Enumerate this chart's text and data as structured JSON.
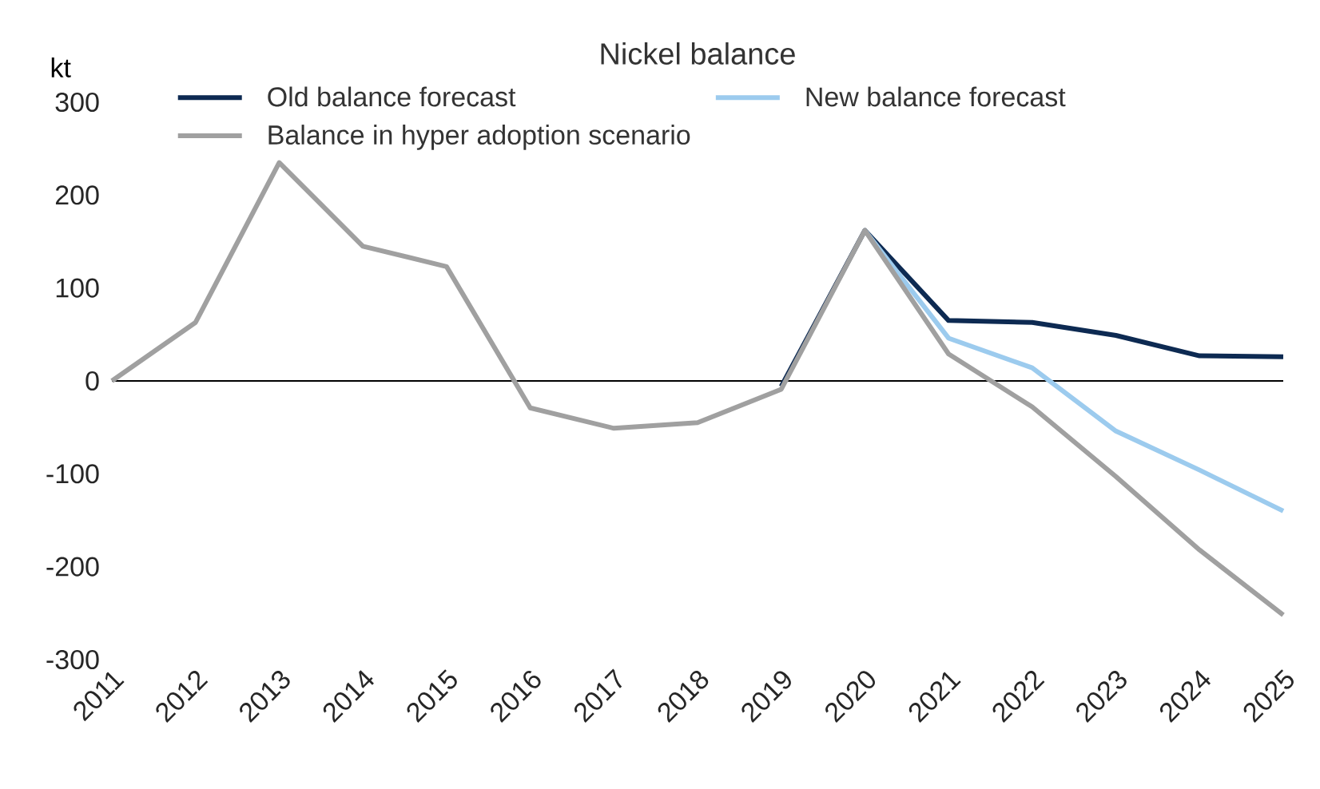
{
  "chart_data": {
    "type": "line",
    "title": "Nickel balance",
    "ylabel": "kt",
    "categories": [
      "2011",
      "2012",
      "2013",
      "2014",
      "2015",
      "2016",
      "2017",
      "2018",
      "2019",
      "2020",
      "2021",
      "2022",
      "2023",
      "2024",
      "2025"
    ],
    "series": [
      {
        "name": "Old balance forecast",
        "color": "#0d2a52",
        "values": [
          null,
          null,
          null,
          null,
          null,
          null,
          null,
          null,
          -6,
          162,
          65,
          63,
          49,
          27,
          26
        ]
      },
      {
        "name": "New balance forecast",
        "color": "#9ccbee",
        "values": [
          null,
          null,
          null,
          null,
          null,
          null,
          null,
          null,
          null,
          162,
          46,
          14,
          -54,
          -96,
          -140
        ]
      },
      {
        "name": "Balance in hyper adoption scenario",
        "color": "#a0a0a0",
        "values": [
          0,
          63,
          235,
          145,
          123,
          -29,
          -51,
          -45,
          -9,
          162,
          29,
          -28,
          -103,
          -182,
          -252
        ]
      }
    ],
    "ylim": [
      -300,
      300
    ],
    "yticks": [
      -300,
      -200,
      -100,
      0,
      100,
      200,
      300
    ],
    "ref_lines": [
      {
        "axis": "y",
        "value": 0,
        "color": "#000000"
      }
    ],
    "grid": false,
    "legend": "top left",
    "marker": "none",
    "line_style": "solid"
  }
}
